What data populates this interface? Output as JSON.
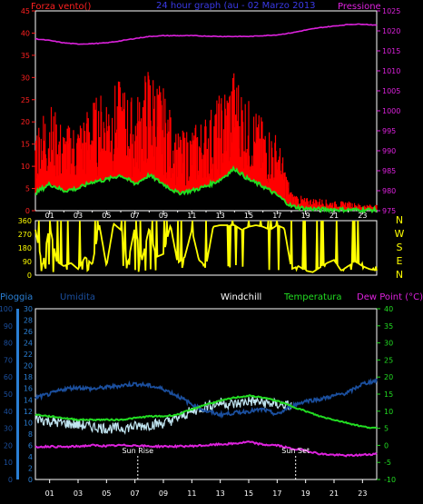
{
  "chart_data": [
    {
      "type": "line",
      "header": {
        "left": "Forza vento()",
        "center": "24 hour graph (au - 02 Marzo 2013",
        "right": "Pressione"
      },
      "x_ticks": [
        "01",
        "03",
        "05",
        "07",
        "09",
        "11",
        "13",
        "15",
        "17",
        "19",
        "21",
        "23"
      ],
      "x_ticks_minor": [
        "02",
        "04",
        "06",
        "08",
        "10",
        "12",
        "14",
        "16",
        "18",
        "20",
        "22",
        "24"
      ],
      "xlim": [
        0,
        24
      ],
      "ylim_left": [
        0,
        45
      ],
      "left_ticks": [
        "0",
        "5",
        "10",
        "15",
        "20",
        "25",
        "30",
        "35",
        "40",
        "45"
      ],
      "ylim_right": [
        975,
        1025
      ],
      "right_ticks": [
        "975",
        "980",
        "985",
        "990",
        "995",
        "1000",
        "1005",
        "1010",
        "1015",
        "1020",
        "1025"
      ],
      "colors": {
        "gust": "#ff0000",
        "speed": "#22dd22",
        "pressure": "#dd22dd",
        "left_axis": "#ff2020",
        "right_axis": "#dd22dd"
      },
      "series": [
        {
          "role": "pressure",
          "axis": "right",
          "x": [
            0,
            1,
            2,
            3,
            4,
            5,
            6,
            7,
            8,
            9,
            10,
            11,
            12,
            13,
            14,
            15,
            16,
            17,
            18,
            19,
            20,
            21,
            22,
            23,
            24
          ],
          "values": [
            1018,
            1017.6,
            1017,
            1016.7,
            1016.8,
            1017,
            1017.5,
            1018.1,
            1018.6,
            1018.8,
            1018.8,
            1018.8,
            1018.7,
            1018.6,
            1018.6,
            1018.6,
            1018.8,
            1019,
            1019.5,
            1020.2,
            1020.8,
            1021.2,
            1021.6,
            1021.7,
            1021.4
          ]
        },
        {
          "role": "gust",
          "axis": "left",
          "x": [
            0,
            1,
            2,
            3,
            4,
            5,
            6,
            7,
            8,
            9,
            10,
            11,
            12,
            13,
            14,
            15,
            16,
            17,
            18,
            19,
            20,
            21,
            22,
            23,
            24
          ],
          "values": [
            14,
            17,
            13,
            14,
            17,
            19,
            20,
            17,
            23,
            19,
            12,
            13,
            15,
            18,
            22,
            17,
            14,
            12,
            3,
            2,
            2,
            1.5,
            1.5,
            1,
            1
          ]
        },
        {
          "role": "speed",
          "axis": "left",
          "x": [
            0,
            1,
            2,
            3,
            4,
            5,
            6,
            7,
            8,
            9,
            10,
            11,
            12,
            13,
            14,
            15,
            16,
            17,
            18,
            19,
            20,
            21,
            22,
            23,
            24
          ],
          "values": [
            4,
            6,
            4.5,
            5,
            6.5,
            7,
            8,
            6,
            8,
            6,
            4,
            4.5,
            5.5,
            7,
            9.5,
            7,
            5.5,
            3.5,
            1,
            0.5,
            0.3,
            0.3,
            0.2,
            0.2,
            0.2
          ]
        }
      ]
    },
    {
      "type": "line",
      "ylim": [
        0,
        360
      ],
      "left_ticks": [
        "0",
        "90",
        "180",
        "270",
        "360"
      ],
      "right_labels": [
        "N",
        "W",
        "S",
        "E",
        "N"
      ],
      "color": "#ffff00",
      "series": [
        {
          "role": "wind-direction",
          "x": [
            0,
            0.5,
            1,
            1.5,
            2,
            2.5,
            3,
            3.5,
            4,
            4.5,
            5,
            5.5,
            6,
            6.5,
            7,
            7.5,
            8,
            8.5,
            9,
            9.5,
            10,
            10.5,
            11,
            11.5,
            12,
            12.5,
            13,
            13.5,
            14,
            14.5,
            15,
            15.5,
            16,
            16.5,
            17,
            17.5,
            18,
            18.5,
            19,
            19.5,
            20,
            20.5,
            21,
            21.5,
            22,
            22.5,
            23,
            23.5,
            24
          ],
          "values": [
            300,
            60,
            330,
            90,
            60,
            80,
            40,
            120,
            70,
            330,
            60,
            340,
            300,
            80,
            320,
            100,
            310,
            120,
            140,
            330,
            80,
            120,
            300,
            100,
            60,
            320,
            330,
            330,
            330,
            300,
            320,
            330,
            320,
            300,
            330,
            310,
            40,
            60,
            30,
            20,
            50,
            80,
            100,
            30,
            60,
            90,
            60,
            40,
            30
          ]
        }
      ]
    },
    {
      "type": "line",
      "labels": {
        "pioggia": "Pioggia",
        "umidita": "Umidita",
        "windchill": "Windchill",
        "temperatura": "Temperatura",
        "dewpoint": "Dew Point (°C)",
        "sunrise": "Sun Rise",
        "sunset": "Sun Set"
      },
      "sunrise_x": 7.2,
      "sunset_x": 18.3,
      "ylim_left": [
        0,
        100
      ],
      "left_ticks_humidity": [
        "0",
        "10",
        "20",
        "30",
        "40",
        "50",
        "60",
        "70",
        "80",
        "90",
        "100"
      ],
      "left_ticks_rain": [
        "0",
        "2",
        "4",
        "6",
        "8",
        "10",
        "12",
        "14",
        "16",
        "18",
        "20",
        "22",
        "24",
        "26",
        "28",
        "30"
      ],
      "ylim_right": [
        -10,
        40
      ],
      "right_ticks": [
        "-10",
        "-5",
        "0",
        "5",
        "10",
        "15",
        "20",
        "25",
        "30",
        "35",
        "40"
      ],
      "colors": {
        "humidity": "#1b4f9e",
        "temperature": "#22dd22",
        "windchill": "#c0e4f0",
        "dewpoint": "#dd22dd",
        "rain": "#2a7fd4"
      },
      "series": [
        {
          "role": "humidity",
          "axis": "left",
          "x": [
            0,
            1,
            2,
            3,
            4,
            5,
            6,
            7,
            8,
            9,
            10,
            11,
            12,
            13,
            14,
            15,
            16,
            17,
            18,
            19,
            20,
            21,
            22,
            23,
            24
          ],
          "values": [
            48,
            50,
            53,
            54,
            53,
            54,
            55,
            56,
            55,
            53,
            49,
            44,
            40,
            38,
            39,
            40,
            41,
            38,
            43,
            46,
            47,
            49,
            51,
            56,
            58
          ]
        },
        {
          "role": "temperature",
          "axis": "right",
          "x": [
            0,
            1,
            2,
            3,
            4,
            5,
            6,
            7,
            8,
            9,
            10,
            11,
            12,
            13,
            14,
            15,
            16,
            17,
            18,
            19,
            20,
            21,
            22,
            23,
            24
          ],
          "values": [
            9,
            8.5,
            8,
            7.5,
            7.5,
            7.5,
            7.5,
            8,
            8.5,
            8.5,
            9,
            10.5,
            12,
            13,
            14,
            14.5,
            14,
            13,
            11.5,
            10,
            8.5,
            7.5,
            6.5,
            5.5,
            5
          ]
        },
        {
          "role": "windchill",
          "axis": "right",
          "x": [
            0,
            1,
            2,
            3,
            4,
            5,
            6,
            7,
            8,
            9,
            10,
            11,
            12,
            13,
            14,
            15,
            16,
            17,
            18
          ],
          "values": [
            8,
            7,
            6.5,
            6,
            5.5,
            5,
            5,
            5.5,
            6,
            6.5,
            8,
            10,
            11.5,
            12.5,
            12,
            13,
            12.5,
            12,
            11.5
          ]
        },
        {
          "role": "dewpoint",
          "axis": "right",
          "x": [
            0,
            1,
            2,
            3,
            4,
            5,
            6,
            7,
            8,
            9,
            10,
            11,
            12,
            13,
            14,
            15,
            16,
            17,
            18,
            19,
            20,
            21,
            22,
            23,
            24
          ],
          "values": [
            -0.5,
            -0.3,
            -0.5,
            -0.3,
            0,
            -0.2,
            0,
            0,
            -0.3,
            -0.3,
            -0.3,
            -0.2,
            0,
            0.3,
            0.5,
            1,
            0.2,
            0,
            -1,
            -1.5,
            -2.5,
            -2.8,
            -3,
            -2.8,
            -2.5
          ]
        }
      ]
    }
  ]
}
